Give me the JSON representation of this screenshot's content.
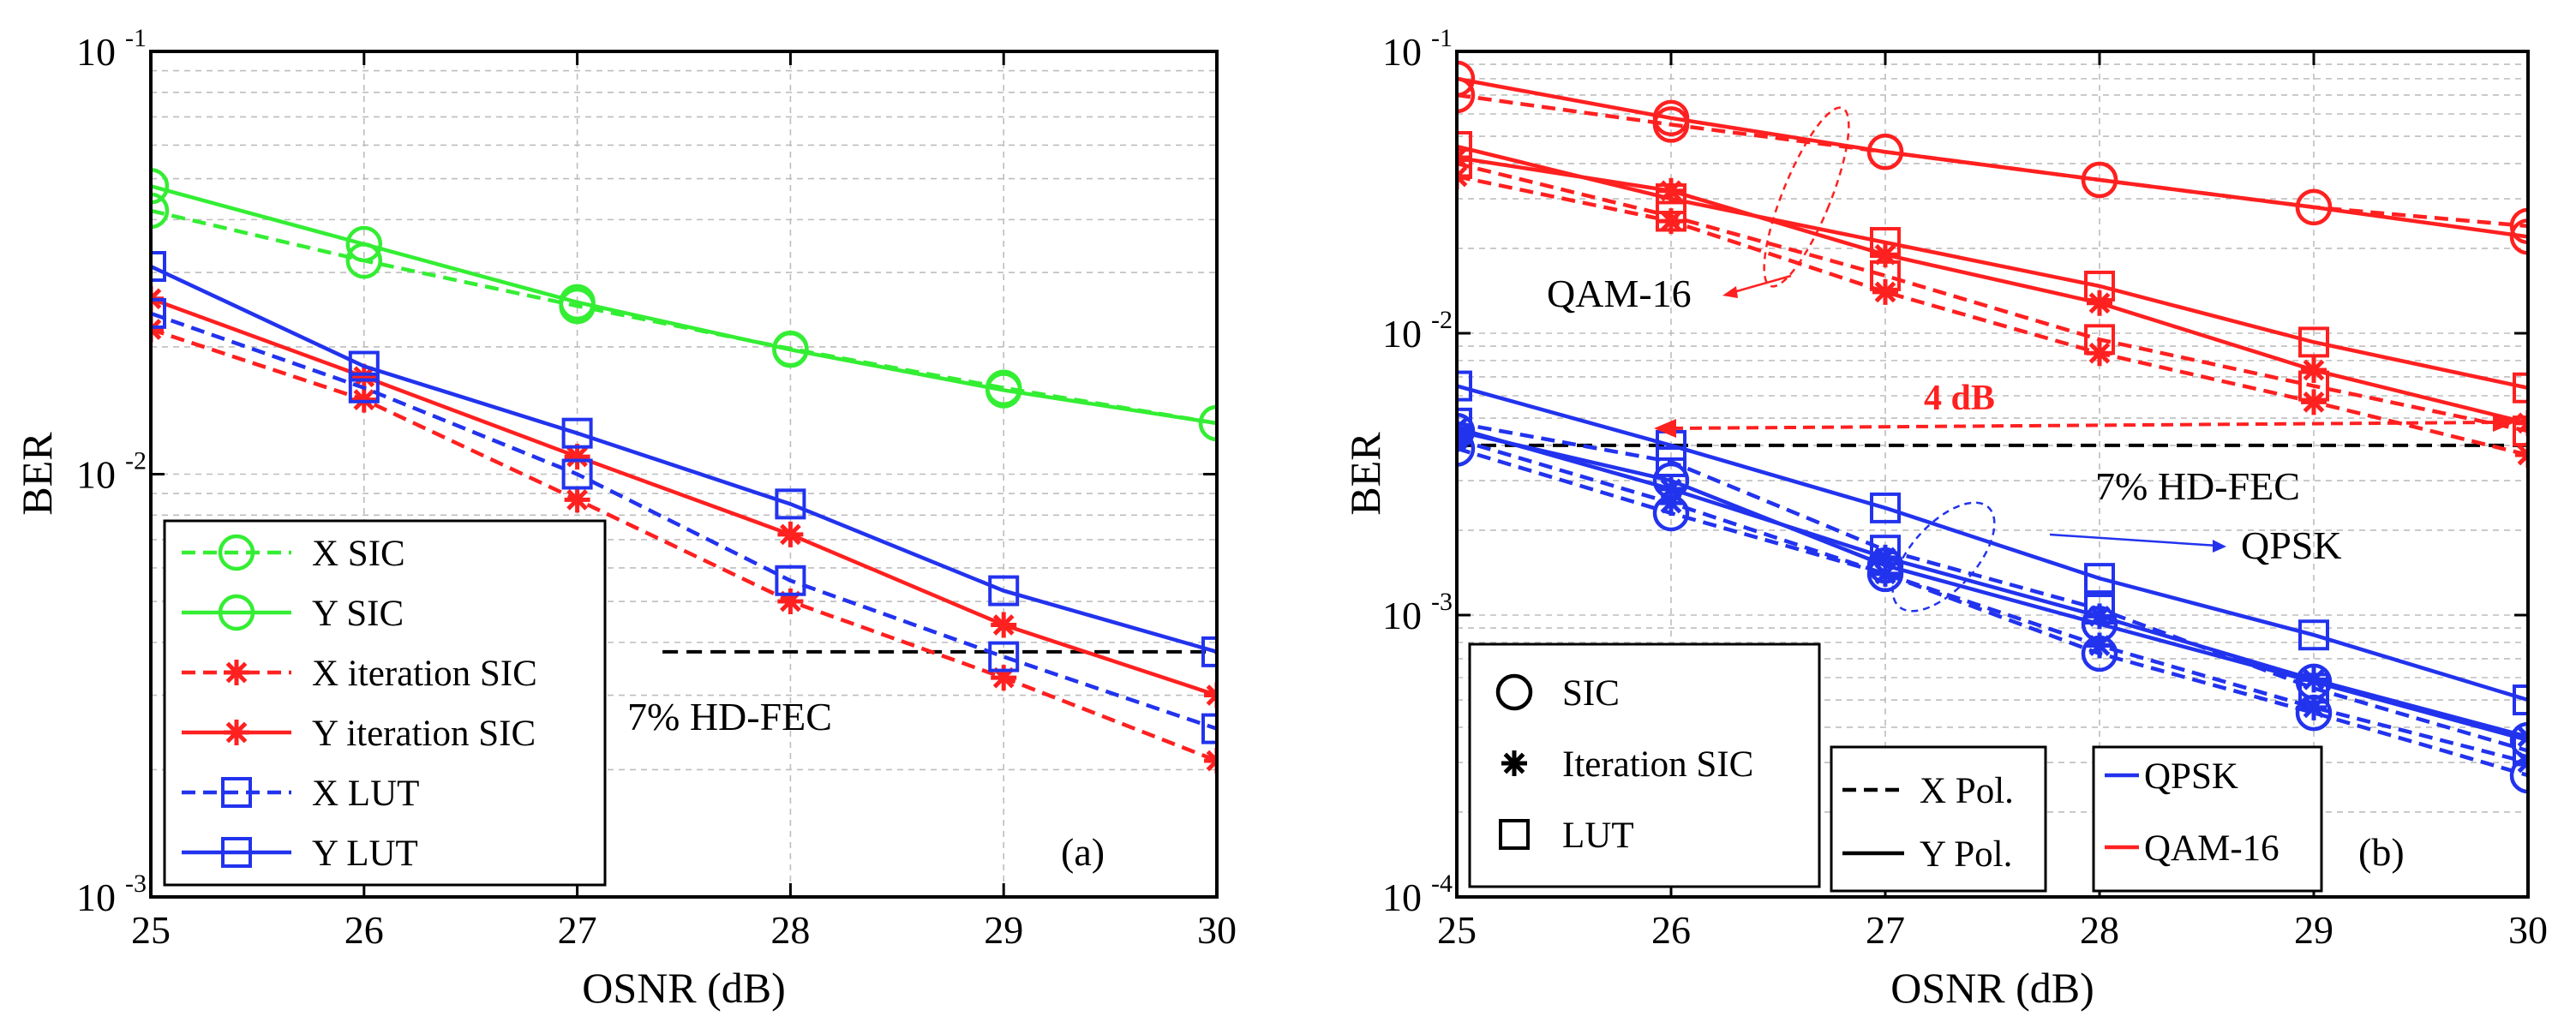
{
  "chart_data": [
    {
      "type": "line",
      "panel_label": "(a)",
      "xlabel": "OSNR (dB)",
      "ylabel": "BER",
      "xlim": [
        25,
        30
      ],
      "ylim": [
        0.001,
        0.1
      ],
      "y_scale": "log",
      "grid": true,
      "x_ticks": [
        "25",
        "26",
        "27",
        "28",
        "29",
        "30"
      ],
      "y_ticks": [
        {
          "base": "10",
          "exp": "-3",
          "value": 0.001
        },
        {
          "base": "10",
          "exp": "-2",
          "value": 0.01
        },
        {
          "base": "10",
          "exp": "-1",
          "value": 0.1
        }
      ],
      "legend_position": "bottom-left",
      "x": [
        25,
        26,
        27,
        28,
        29,
        30
      ],
      "series": [
        {
          "name": "X SIC",
          "color": "#33ee33",
          "dash": "dashed",
          "marker": "circle",
          "values": [
            0.042,
            0.032,
            0.025,
            0.0198,
            0.016,
            0.0132
          ]
        },
        {
          "name": "Y SIC",
          "color": "#33ee33",
          "dash": "solid",
          "marker": "circle",
          "values": [
            0.048,
            0.035,
            0.0255,
            0.0197,
            0.0158,
            0.0132
          ]
        },
        {
          "name": "X iteration SIC",
          "color": "#ff2020",
          "dash": "dashed",
          "marker": "star",
          "values": [
            0.022,
            0.015,
            0.0087,
            0.005,
            0.0033,
            0.0021
          ]
        },
        {
          "name": "Y iteration SIC",
          "color": "#ff2020",
          "dash": "solid",
          "marker": "star",
          "values": [
            0.026,
            0.017,
            0.011,
            0.0072,
            0.0044,
            0.003
          ]
        },
        {
          "name": "X LUT",
          "color": "#2233ee",
          "dash": "dashed",
          "marker": "square",
          "values": [
            0.024,
            0.016,
            0.01,
            0.0056,
            0.0037,
            0.0025
          ]
        },
        {
          "name": "Y LUT",
          "color": "#2233ee",
          "dash": "solid",
          "marker": "square",
          "values": [
            0.031,
            0.018,
            0.0125,
            0.0085,
            0.0053,
            0.0038
          ]
        }
      ],
      "threshold": {
        "label": "7% HD-FEC",
        "value": 0.0038,
        "x_start": 27.4,
        "x_end": 30
      }
    },
    {
      "type": "line",
      "panel_label": "(b)",
      "xlabel": "OSNR (dB)",
      "ylabel": "BER",
      "xlim": [
        25,
        30
      ],
      "ylim": [
        0.0001,
        0.1
      ],
      "y_scale": "log",
      "grid": true,
      "x_ticks": [
        "25",
        "26",
        "27",
        "28",
        "29",
        "30"
      ],
      "y_ticks": [
        {
          "base": "10",
          "exp": "-4",
          "value": 0.0001
        },
        {
          "base": "10",
          "exp": "-3",
          "value": 0.001
        },
        {
          "base": "10",
          "exp": "-2",
          "value": 0.01
        },
        {
          "base": "10",
          "exp": "-1",
          "value": 0.1
        }
      ],
      "x": [
        25,
        26,
        27,
        28,
        29,
        30
      ],
      "series": [
        {
          "color": "#ff2020",
          "dash": "dashed",
          "marker": "circle",
          "values": [
            0.07,
            0.055,
            0.044,
            0.035,
            0.028,
            0.024
          ]
        },
        {
          "color": "#ff2020",
          "dash": "solid",
          "marker": "circle",
          "values": [
            0.08,
            0.058,
            0.044,
            0.035,
            0.028,
            0.022
          ]
        },
        {
          "color": "#ff2020",
          "dash": "dashed",
          "marker": "star",
          "values": [
            0.036,
            0.025,
            0.014,
            0.0085,
            0.0057,
            0.0037
          ]
        },
        {
          "color": "#ff2020",
          "dash": "solid",
          "marker": "star",
          "values": [
            0.042,
            0.032,
            0.019,
            0.0128,
            0.0074,
            0.0048
          ]
        },
        {
          "color": "#ff2020",
          "dash": "dashed",
          "marker": "square",
          "values": [
            0.04,
            0.026,
            0.016,
            0.0095,
            0.0065,
            0.0045
          ]
        },
        {
          "color": "#ff2020",
          "dash": "solid",
          "marker": "square",
          "values": [
            0.046,
            0.03,
            0.021,
            0.0147,
            0.0093,
            0.0064
          ]
        },
        {
          "color": "#2233ee",
          "dash": "dashed",
          "marker": "circle",
          "values": [
            0.0039,
            0.0023,
            0.0014,
            0.00073,
            0.00045,
            0.00027
          ]
        },
        {
          "color": "#2233ee",
          "dash": "solid",
          "marker": "circle",
          "values": [
            0.0045,
            0.003,
            0.0015,
            0.00093,
            0.00058,
            0.00036
          ]
        },
        {
          "color": "#2233ee",
          "dash": "dashed",
          "marker": "star",
          "values": [
            0.0042,
            0.0025,
            0.0014,
            0.00078,
            0.00047,
            0.0003
          ]
        },
        {
          "color": "#2233ee",
          "dash": "solid",
          "marker": "star",
          "values": [
            0.0046,
            0.0028,
            0.0016,
            0.00099,
            0.00059,
            0.00037
          ]
        },
        {
          "color": "#2233ee",
          "dash": "dashed",
          "marker": "square",
          "values": [
            0.0048,
            0.0035,
            0.0017,
            0.00105,
            0.00055,
            0.00033
          ]
        },
        {
          "color": "#2233ee",
          "dash": "solid",
          "marker": "square",
          "values": [
            0.0065,
            0.004,
            0.0024,
            0.00135,
            0.00085,
            0.0005
          ]
        }
      ],
      "threshold": {
        "label": "7% HD-FEC",
        "value": 0.004,
        "x_start": 25,
        "x_end": 30
      },
      "annotations": {
        "gap_label": "4 dB",
        "qam_label": "QAM-16",
        "qpsk_label": "QPSK"
      },
      "legends": {
        "markers": [
          {
            "label": "SIC",
            "marker": "circle"
          },
          {
            "label": "Iteration SIC",
            "marker": "star"
          },
          {
            "label": "LUT",
            "marker": "square"
          }
        ],
        "polarization": [
          {
            "label": "X Pol.",
            "dash": "dashed"
          },
          {
            "label": "Y Pol.",
            "dash": "solid"
          }
        ],
        "modulation": [
          {
            "label": "QPSK",
            "color": "#2233ee"
          },
          {
            "label": "QAM-16",
            "color": "#ff2020"
          }
        ]
      }
    }
  ]
}
